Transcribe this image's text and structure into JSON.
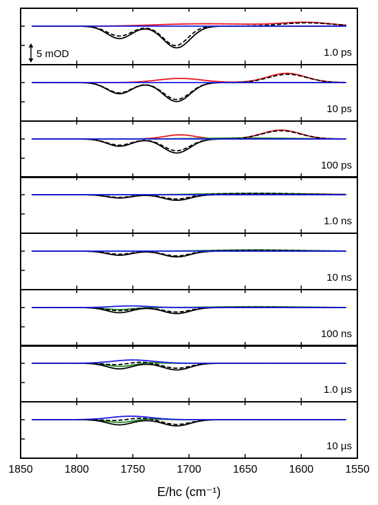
{
  "chart_data": {
    "type": "line",
    "xlabel": "E/hc (cm⁻¹)",
    "x_ticks": [
      1850,
      1800,
      1750,
      1700,
      1650,
      1600,
      1550
    ],
    "xlim": [
      1850,
      1550
    ],
    "x_range_data": [
      1840,
      1560
    ],
    "scale_bar_label": "5 mOD",
    "scale_bar_value_mOD": 5,
    "colors": {
      "black": "#000000",
      "red": "#e8141c",
      "green": "#1e8a1e",
      "blue": "#1a1ae6"
    },
    "panels": [
      {
        "label": "1.0 ps",
        "black": [
          {
            "c": 1762,
            "w": 11,
            "a": -6.0
          },
          {
            "c": 1711,
            "w": 12,
            "a": -10.5
          }
        ],
        "dashed": [
          {
            "c": 1762,
            "w": 11,
            "a": -4.8
          },
          {
            "c": 1712,
            "w": 11,
            "a": -9.4
          },
          {
            "c": 1595,
            "w": 22,
            "a": 1.6
          }
        ],
        "red": [
          {
            "c": 1710,
            "w": 30,
            "a": 0.5
          },
          {
            "c": 1665,
            "w": 40,
            "a": 0.9
          },
          {
            "c": 1595,
            "w": 22,
            "a": 1.7
          }
        ],
        "green": [],
        "blue": []
      },
      {
        "label": "10 ps",
        "black": [
          {
            "c": 1762,
            "w": 11,
            "a": -5.4
          },
          {
            "c": 1711,
            "w": 12,
            "a": -9.2
          }
        ],
        "dashed": [
          {
            "c": 1762,
            "w": 11,
            "a": -5.0
          },
          {
            "c": 1711,
            "w": 12,
            "a": -8.2
          },
          {
            "c": 1612,
            "w": 17,
            "a": 4.0
          }
        ],
        "red": [
          {
            "c": 1708,
            "w": 20,
            "a": 2.0
          },
          {
            "c": 1613,
            "w": 17,
            "a": 4.5
          }
        ],
        "green": [],
        "blue": []
      },
      {
        "label": "100 ps",
        "black": [
          {
            "c": 1762,
            "w": 11,
            "a": -3.5
          },
          {
            "c": 1711,
            "w": 12,
            "a": -6.8
          }
        ],
        "dashed": [
          {
            "c": 1762,
            "w": 11,
            "a": -3.0
          },
          {
            "c": 1711,
            "w": 12,
            "a": -5.7
          },
          {
            "c": 1618,
            "w": 17,
            "a": 4.0
          }
        ],
        "red": [
          {
            "c": 1708,
            "w": 14,
            "a": 2.0
          },
          {
            "c": 1618,
            "w": 17,
            "a": 4.3
          }
        ],
        "green": [
          {
            "c": 1650,
            "w": 40,
            "a": 0.5
          }
        ],
        "blue": []
      },
      {
        "label": "1.0 ns",
        "black": [
          {
            "c": 1762,
            "w": 11,
            "a": -1.6
          },
          {
            "c": 1711,
            "w": 12,
            "a": -2.7
          }
        ],
        "dashed": [
          {
            "c": 1762,
            "w": 11,
            "a": -1.3
          },
          {
            "c": 1711,
            "w": 12,
            "a": -2.2
          },
          {
            "c": 1640,
            "w": 40,
            "a": 0.6
          }
        ],
        "red": [
          {
            "c": 1600,
            "w": 25,
            "a": 0.4
          }
        ],
        "green": [
          {
            "c": 1640,
            "w": 40,
            "a": 0.7
          }
        ],
        "blue": []
      },
      {
        "label": "10 ns",
        "black": [
          {
            "c": 1762,
            "w": 11,
            "a": -2.0
          },
          {
            "c": 1711,
            "w": 12,
            "a": -2.8
          }
        ],
        "dashed": [
          {
            "c": 1762,
            "w": 11,
            "a": -1.5
          },
          {
            "c": 1711,
            "w": 12,
            "a": -2.4
          },
          {
            "c": 1640,
            "w": 38,
            "a": 0.4
          }
        ],
        "red": [],
        "green": [
          {
            "c": 1640,
            "w": 38,
            "a": 0.6
          }
        ],
        "blue": []
      },
      {
        "label": "100 ns",
        "black": [
          {
            "c": 1762,
            "w": 11,
            "a": -2.5
          },
          {
            "c": 1711,
            "w": 12,
            "a": -2.9
          }
        ],
        "dashed": [
          {
            "c": 1762,
            "w": 11,
            "a": -1.5
          },
          {
            "c": 1711,
            "w": 12,
            "a": -2.2
          },
          {
            "c": 1640,
            "w": 38,
            "a": 0.2
          }
        ],
        "red": [],
        "green": [
          {
            "c": 1762,
            "w": 12,
            "a": -1.0
          },
          {
            "c": 1640,
            "w": 38,
            "a": 0.4
          }
        ],
        "blue": [
          {
            "c": 1752,
            "w": 16,
            "a": 0.8
          }
        ]
      },
      {
        "label": "1.0 µs",
        "black": [
          {
            "c": 1762,
            "w": 11,
            "a": -2.7
          },
          {
            "c": 1711,
            "w": 12,
            "a": -3.2
          }
        ],
        "dashed": [
          {
            "c": 1762,
            "w": 11,
            "a": -0.9
          },
          {
            "c": 1711,
            "w": 12,
            "a": -2.4
          },
          {
            "c": 1745,
            "w": 12,
            "a": 0.8
          }
        ],
        "red": [],
        "green": [
          {
            "c": 1760,
            "w": 12,
            "a": -1.6
          },
          {
            "c": 1740,
            "w": 12,
            "a": 0.4
          }
        ],
        "blue": [
          {
            "c": 1750,
            "w": 18,
            "a": 1.6
          }
        ]
      },
      {
        "label": "10 µs",
        "black": [
          {
            "c": 1762,
            "w": 11,
            "a": -2.5
          },
          {
            "c": 1711,
            "w": 12,
            "a": -3.0
          }
        ],
        "dashed": [
          {
            "c": 1762,
            "w": 11,
            "a": -0.6
          },
          {
            "c": 1711,
            "w": 12,
            "a": -2.3
          },
          {
            "c": 1745,
            "w": 12,
            "a": 0.9
          }
        ],
        "red": [],
        "green": [
          {
            "c": 1760,
            "w": 12,
            "a": -1.4
          },
          {
            "c": 1740,
            "w": 12,
            "a": 0.5
          }
        ],
        "blue": [
          {
            "c": 1752,
            "w": 18,
            "a": 1.7
          }
        ]
      }
    ]
  }
}
